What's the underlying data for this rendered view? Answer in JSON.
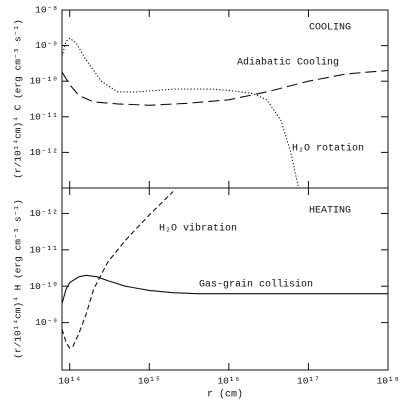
{
  "chart_data": [
    {
      "type": "line",
      "panel_label": "COOLING",
      "y_label": "(r/10¹⁴cm)⁴ C (erg cm⁻³ s⁻¹)",
      "x_log": true,
      "y_log": true,
      "xlim": [
        80000000000000.0,
        1e+18
      ],
      "xticks": [
        100000000000000.0,
        1000000000000000.0,
        1e+16,
        1e+17,
        1e+18
      ],
      "ylim": [
        1e-13,
        1e-08
      ],
      "yticks": [
        {
          "value": 1e-12,
          "label": "10⁻¹²"
        },
        {
          "value": 1e-11,
          "label": "10⁻¹¹"
        },
        {
          "value": 1e-10,
          "label": "10⁻¹⁰"
        },
        {
          "value": 1e-09,
          "label": "10⁻⁹"
        },
        {
          "value": 1e-08,
          "label": "10⁻⁸"
        }
      ],
      "series": [
        {
          "name": "Adiabatic Cooling",
          "color": "#111",
          "linestyle": "long-dashed",
          "x": [
            80000000000000.0,
            100000000000000.0,
            130000000000000.0,
            200000000000000.0,
            400000000000000.0,
            1000000000000000.0,
            3000000000000000.0,
            1e+16,
            3e+16,
            1e+17,
            3e+17,
            1e+18
          ],
          "values": [
            1.8e-10,
            8e-11,
            4e-11,
            2.6e-11,
            2.3e-11,
            2.1e-11,
            2.4e-11,
            3e-11,
            5e-11,
            1e-10,
            1.6e-10,
            2e-10
          ]
        },
        {
          "name": "H₂O rotation",
          "color": "#111",
          "linestyle": "dotted",
          "x": [
            80000000000000.0,
            90000000000000.0,
            100000000000000.0,
            120000000000000.0,
            160000000000000.0,
            250000000000000.0,
            400000000000000.0,
            700000000000000.0,
            2000000000000000.0,
            6000000000000000.0,
            1e+16,
            2e+16,
            3e+16,
            4.5e+16,
            6e+16,
            7.5e+16,
            8.5e+16
          ],
          "values": [
            5e-10,
            1.3e-09,
            1.6e-09,
            1.2e-09,
            4e-10,
            1e-10,
            5e-11,
            5e-11,
            6e-11,
            6e-11,
            5.5e-11,
            4.5e-11,
            3e-11,
            8e-12,
            1e-12,
            1e-13,
            1e-13
          ]
        }
      ]
    },
    {
      "type": "line",
      "panel_label": "HEATING",
      "y_label": "(r/10¹⁴cm)⁴ H (erg cm⁻³ s⁻¹)",
      "x_label": "r (cm)",
      "x_log": true,
      "y_log": true,
      "y_inverted": true,
      "xlim": [
        80000000000000.0,
        1e+18
      ],
      "xticks": [
        {
          "value": 100000000000000.0,
          "label": "10¹⁴"
        },
        {
          "value": 1000000000000000.0,
          "label": "10¹⁵"
        },
        {
          "value": 1e+16,
          "label": "10¹⁶"
        },
        {
          "value": 1e+17,
          "label": "10¹⁷"
        },
        {
          "value": 1e+18,
          "label": "10¹⁸"
        }
      ],
      "ylim": [
        2e-13,
        2e-08
      ],
      "yticks": [
        {
          "value": 1e-12,
          "label": "10⁻¹²"
        },
        {
          "value": 1e-11,
          "label": "10⁻¹¹"
        },
        {
          "value": 1e-10,
          "label": "10⁻¹⁰"
        },
        {
          "value": 1e-09,
          "label": "10⁻⁹"
        }
      ],
      "series": [
        {
          "name": "H₂O vibration",
          "color": "#111",
          "linestyle": "dashed",
          "x": [
            80000000000000.0,
            90000000000000.0,
            100000000000000.0,
            110000000000000.0,
            130000000000000.0,
            160000000000000.0,
            200000000000000.0,
            300000000000000.0,
            500000000000000.0,
            1000000000000000.0,
            2000000000000000.0
          ],
          "values": [
            1.5e-09,
            3.5e-09,
            5e-09,
            4.5e-09,
            2e-09,
            6e-10,
            1.2e-10,
            2.2e-11,
            5.5e-12,
            1.1e-12,
            2.5e-13
          ]
        },
        {
          "name": "Gas-grain collision",
          "color": "#111",
          "linestyle": "solid",
          "x": [
            80000000000000.0,
            90000000000000.0,
            100000000000000.0,
            130000000000000.0,
            160000000000000.0,
            220000000000000.0,
            300000000000000.0,
            500000000000000.0,
            1000000000000000.0,
            2000000000000000.0,
            4000000000000000.0,
            1e+16,
            1e+17,
            1e+18
          ],
          "values": [
            3e-10,
            1.2e-10,
            8e-11,
            5.5e-11,
            5e-11,
            5.5e-11,
            7e-11,
            1e-10,
            1.3e-10,
            1.5e-10,
            1.6e-10,
            1.6e-10,
            1.6e-10,
            1.6e-10
          ]
        }
      ]
    }
  ]
}
